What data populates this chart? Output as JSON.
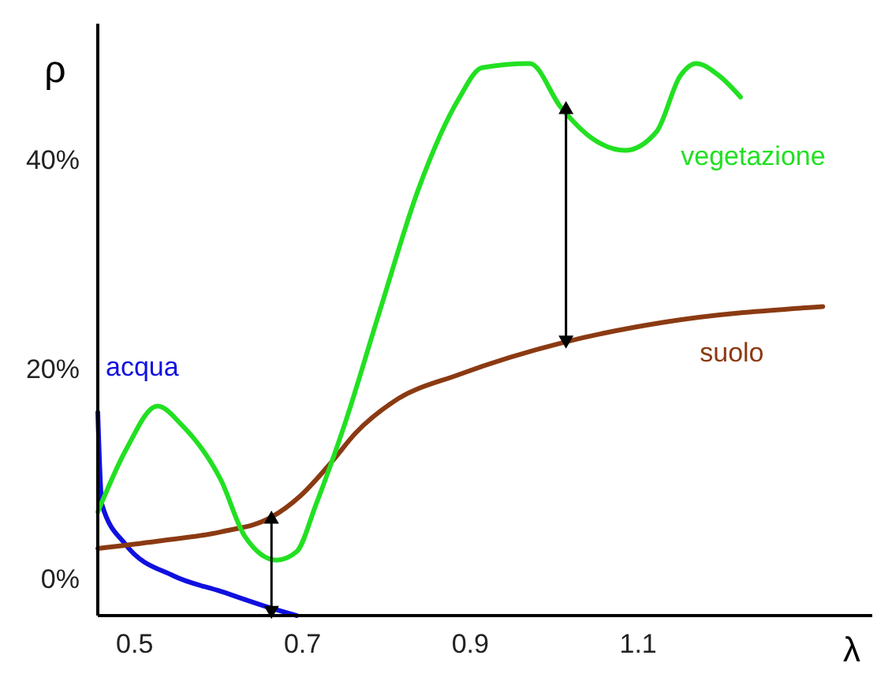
{
  "chart_data": {
    "type": "line",
    "xlabel": "λ",
    "ylabel": "ρ",
    "xlim": [
      0.457,
      1.38
    ],
    "xticks": [
      0.5,
      0.7,
      0.9,
      1.1
    ],
    "ylim": [
      -3.5,
      53
    ],
    "yticks": [
      {
        "value": 0,
        "label": "0%"
      },
      {
        "value": 20,
        "label": "20%"
      },
      {
        "value": 40,
        "label": "40%"
      }
    ],
    "grid": false,
    "marker": "none",
    "line_style": "solid",
    "series": [
      {
        "name": "acqua",
        "color": "#1010e0",
        "x": [
          0.457,
          0.462,
          0.49,
          0.547,
          0.604,
          0.66,
          0.694
        ],
        "values": [
          15.9,
          7.1,
          3.3,
          0.3,
          -1.2,
          -2.7,
          -3.5
        ]
      },
      {
        "name": "suolo",
        "color": "#8b3a12",
        "x": [
          0.457,
          0.528,
          0.604,
          0.664,
          0.698,
          0.736,
          0.764,
          0.811,
          0.887,
          1.013,
          1.132,
          1.321
        ],
        "values": [
          2.9,
          3.6,
          4.5,
          5.9,
          7.9,
          11.2,
          13.9,
          17,
          19.5,
          22.6,
          24.5,
          26
        ]
      },
      {
        "name": "vegetazione",
        "color": "#22e022",
        "x": [
          0.457,
          0.491,
          0.528,
          0.557,
          0.604,
          0.632,
          0.67,
          0.694,
          0.717,
          0.751,
          0.792,
          0.84,
          0.887,
          0.915,
          0.972,
          1.009,
          1.047,
          1.085,
          1.123,
          1.151,
          1.17,
          1.198,
          1.223
        ],
        "values": [
          6.4,
          12.4,
          16.5,
          14.7,
          9.4,
          4.1,
          1.8,
          2.6,
          7.1,
          14.7,
          25.3,
          37.4,
          45.8,
          48.8,
          49.2,
          45,
          42,
          40.9,
          42.7,
          48,
          49.2,
          48,
          46
        ]
      },
      {
        "color": "#000000",
        "x": [
          0.664,
          0.664
        ],
        "values": [
          -3.2,
          5.9
        ],
        "marker": "triangle",
        "line_style": "solid"
      },
      {
        "color": "#000000",
        "x": [
          1.015,
          1.015
        ],
        "values": [
          22.6,
          45
        ],
        "marker": "triangle",
        "line_style": "solid"
      }
    ]
  }
}
